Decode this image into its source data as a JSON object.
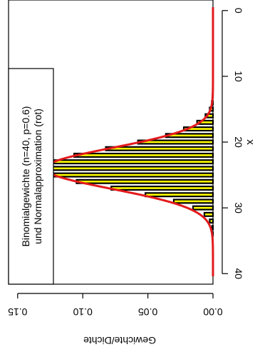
{
  "chart_data": {
    "type": "bar",
    "orientation": "rotated-90",
    "title": "",
    "xlabel": "x",
    "ylabel": "Gewichte/Dichte",
    "xlim": [
      -1.6,
      41.6
    ],
    "ylim": [
      0,
      0.157
    ],
    "xticks": [
      0,
      10,
      20,
      30,
      40
    ],
    "yticks": [
      0.0,
      0.05,
      0.1,
      0.15
    ],
    "ytick_labels": [
      "0.00",
      "0.05",
      "0.10",
      "0.15"
    ],
    "n": 40,
    "p": 0.6,
    "bars": {
      "x": [
        0,
        1,
        2,
        3,
        4,
        5,
        6,
        7,
        8,
        9,
        10,
        11,
        12,
        13,
        14,
        15,
        16,
        17,
        18,
        19,
        20,
        21,
        22,
        23,
        24,
        25,
        26,
        27,
        28,
        29,
        30,
        31,
        32,
        33,
        34,
        35,
        36,
        37,
        38,
        39,
        40
      ],
      "values": [
        0.0,
        0.0,
        0.0,
        0.0,
        0.0,
        0.0,
        0.0,
        0.0,
        0.0,
        0.0,
        0.0,
        0.0,
        0.0001,
        0.0003,
        0.0009,
        0.0025,
        0.0058,
        0.0122,
        0.0224,
        0.0362,
        0.0576,
        0.0823,
        0.1066,
        0.1248,
        0.1314,
        0.1239,
        0.1048,
        0.0781,
        0.0519,
        0.0301,
        0.0153,
        0.0066,
        0.0025,
        0.0007,
        0.0002,
        0.0,
        0.0,
        0.0,
        0.0,
        0.0,
        0.0
      ],
      "fill": "#ffff00",
      "edge": "#000000"
    },
    "curve": {
      "type": "normal-density",
      "mean": 24,
      "sd": 3.098,
      "color": "#e31a1c"
    },
    "legend": {
      "lines": [
        "Binomialgewichte (n=40, p=0.6)",
        "und Normalapproximation (rot)"
      ],
      "placement": "top-left"
    }
  }
}
